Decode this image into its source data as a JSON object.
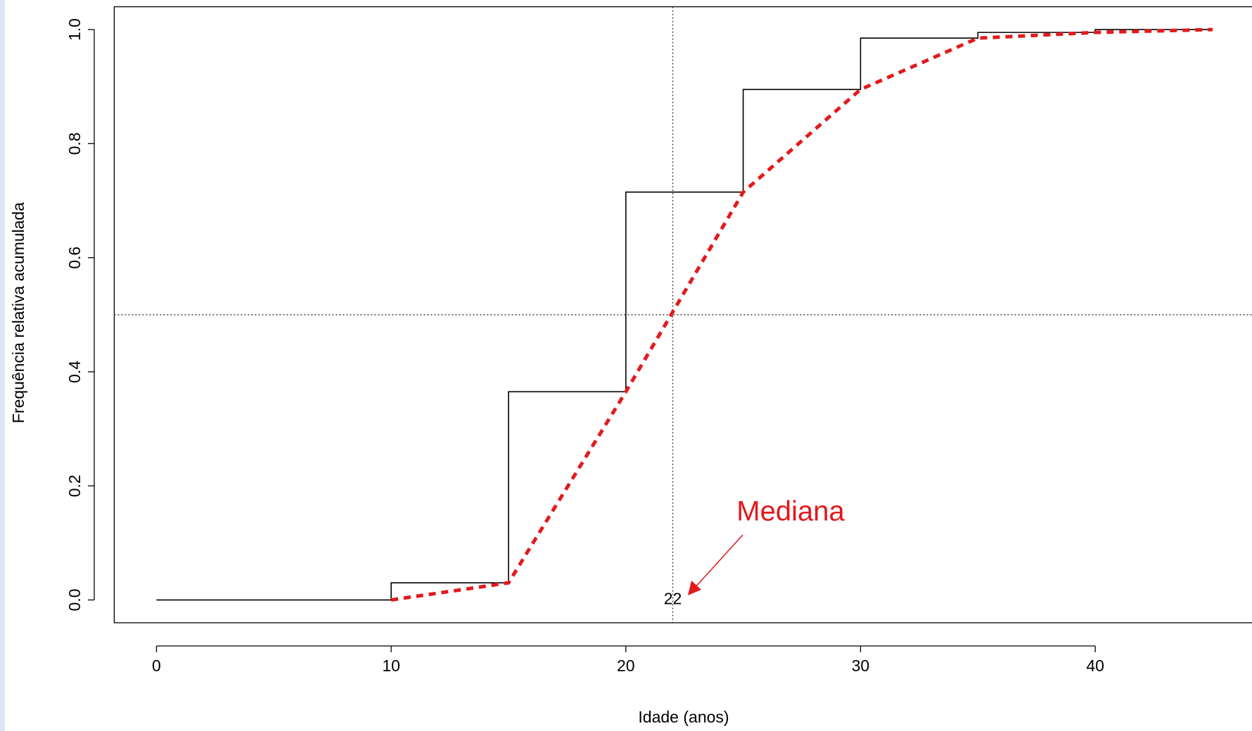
{
  "chart_data": {
    "type": "line",
    "xlabel": "Idade (anos)",
    "ylabel": "Frequência relativa acumulada",
    "xlim": [
      -1.8,
      46.8
    ],
    "ylim": [
      -0.04,
      1.04
    ],
    "xticks": [
      0,
      10,
      20,
      30,
      40
    ],
    "yticks": [
      {
        "value": 0,
        "label": "0.0"
      },
      {
        "value": 0.2,
        "label": "0.2"
      },
      {
        "value": 0.4,
        "label": "0.4"
      },
      {
        "value": 0.6,
        "label": "0.6"
      },
      {
        "value": 0.8,
        "label": "0.8"
      },
      {
        "value": 1,
        "label": "1.0"
      }
    ],
    "series": [
      {
        "color": "#000000",
        "drawstyle": "steps-post",
        "dashed": false,
        "x": [
          0,
          10,
          15,
          20,
          25,
          30,
          35,
          40,
          45
        ],
        "values": [
          0,
          0.03,
          0.365,
          0.715,
          0.895,
          0.985,
          0.995,
          1.0,
          1.0
        ]
      },
      {
        "color": "#e3191c",
        "drawstyle": "linear",
        "dashed": true,
        "x": [
          10,
          15,
          20,
          25,
          30,
          35,
          40,
          45
        ],
        "values": [
          0,
          0.03,
          0.365,
          0.715,
          0.895,
          0.985,
          0.995,
          1.0
        ]
      }
    ],
    "hline": 0.5,
    "vline": 22,
    "annotation": {
      "text": "Mediana",
      "color": "#e3191c"
    }
  }
}
